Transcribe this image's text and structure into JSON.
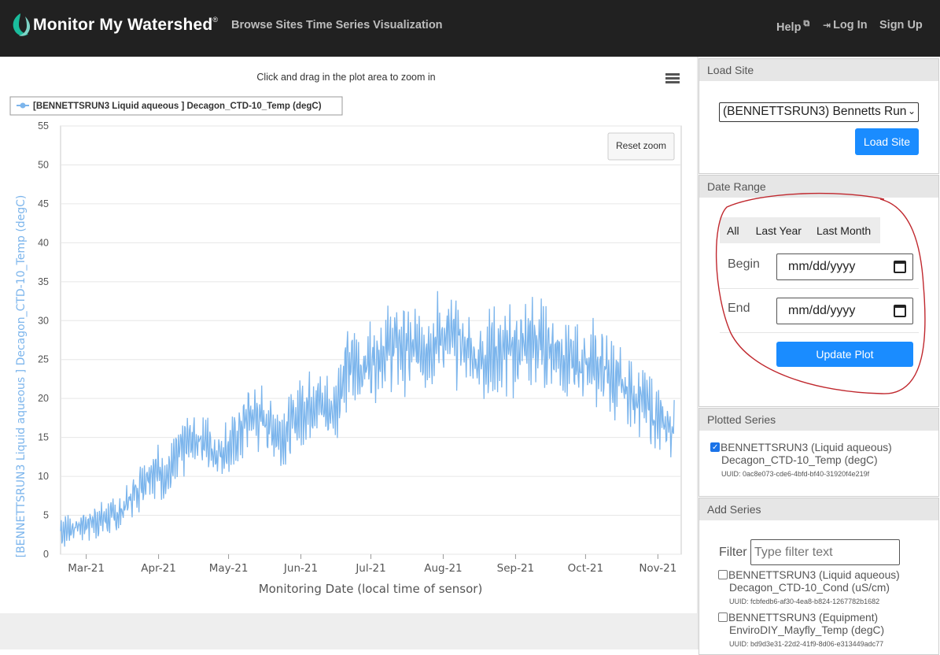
{
  "header": {
    "brand": "Monitor My Watershed",
    "brand_mark": "®",
    "nav_left": [
      "Browse Sites",
      "Time Series Visualization"
    ],
    "help": "Help",
    "login": "Log In",
    "signup": "Sign Up"
  },
  "chart": {
    "instruction": "Click and drag in the plot area to zoom in",
    "legend": "[BENNETTSRUN3 Liquid aqueous ] Decagon_CTD-10_Temp (degC)",
    "reset_zoom": "Reset zoom",
    "y_ticks": [
      "55",
      "50",
      "45",
      "40",
      "35",
      "30",
      "25",
      "20",
      "15",
      "10",
      "5",
      "0"
    ],
    "x_ticks": [
      "Mar-21",
      "Apr-21",
      "May-21",
      "Jun-21",
      "Jul-21",
      "Aug-21",
      "Sep-21",
      "Oct-21",
      "Nov-21"
    ],
    "ylabel": "[BENNETTSRUN3 Liquid aqueous ] Decagon_CTD-10_Temp (degC)",
    "xlabel": "Monitoring Date (local time of sensor)",
    "line_color": "#7cb5ec"
  },
  "chart_data": {
    "type": "line",
    "x": [
      "2021-02-18",
      "2021-02-25",
      "2021-03-01",
      "2021-03-08",
      "2021-03-15",
      "2021-03-22",
      "2021-03-29",
      "2021-04-05",
      "2021-04-12",
      "2021-04-19",
      "2021-04-26",
      "2021-05-03",
      "2021-05-10",
      "2021-05-17",
      "2021-05-24",
      "2021-05-31",
      "2021-06-07",
      "2021-06-14",
      "2021-06-21",
      "2021-06-28",
      "2021-07-05",
      "2021-07-12",
      "2021-07-19",
      "2021-07-26",
      "2021-08-02",
      "2021-08-09",
      "2021-08-16",
      "2021-08-23",
      "2021-08-30",
      "2021-09-06",
      "2021-09-13",
      "2021-09-20",
      "2021-09-27",
      "2021-10-04",
      "2021-10-11",
      "2021-10-18",
      "2021-10-25",
      "2021-11-01",
      "2021-11-08"
    ],
    "series": [
      {
        "values": [
          3,
          3.5,
          4,
          4.5,
          5,
          8,
          11,
          10,
          14,
          15,
          13,
          14,
          18,
          17,
          15,
          18,
          20,
          18,
          24,
          24,
          26,
          27,
          26,
          27,
          28,
          27,
          25,
          26,
          26,
          27,
          27,
          26,
          24,
          25,
          23,
          21,
          20,
          17,
          16
        ]
      }
    ],
    "xlabel": "Monitoring Date (local time of sensor)",
    "ylabel": "[BENNETTSRUN3 Liquid aqueous ] Decagon_CTD-10_Temp (degC)",
    "ylim": [
      0,
      55
    ],
    "x_tick_labels": [
      "Mar-21",
      "Apr-21",
      "May-21",
      "Jun-21",
      "Jul-21",
      "Aug-21",
      "Sep-21",
      "Oct-21",
      "Nov-21"
    ],
    "legend": [
      "[BENNETTSRUN3 Liquid aqueous ] Decagon_CTD-10_Temp (degC)"
    ],
    "grid": true
  },
  "sidebar": {
    "load_site": {
      "title": "Load Site",
      "select_value": "(BENNETTSRUN3) Bennetts Run",
      "button": "Load Site"
    },
    "date_range": {
      "title": "Date Range",
      "tabs": [
        "All",
        "Last Year",
        "Last Month"
      ],
      "begin_label": "Begin",
      "end_label": "End",
      "begin_placeholder": "mm/dd/yyyy",
      "end_placeholder": "mm/dd/yyyy",
      "button": "Update Plot"
    },
    "plotted_series": {
      "title": "Plotted Series",
      "items": [
        {
          "line1": "BENNETTSRUN3 (Liquid aqueous)",
          "line2": "Decagon_CTD-10_Temp (degC)",
          "uuid": "UUID: 0ac8e073-cde6-4bfd-bf40-31920f4e219f",
          "checked": true
        }
      ]
    },
    "add_series": {
      "title": "Add Series",
      "filter_label": "Filter",
      "filter_placeholder": "Type filter text",
      "items": [
        {
          "line1": "BENNETTSRUN3 (Liquid aqueous)",
          "line2": "Decagon_CTD-10_Cond (uS/cm)",
          "uuid": "UUID: fcbfedb6-af30-4ea8-b824-1267782b1682"
        },
        {
          "line1": "BENNETTSRUN3 (Equipment)",
          "line2": "EnviroDIY_Mayfly_Temp (degC)",
          "uuid": "UUID: bd9d3e31-22d2-41f9-8d06-e313449adc77"
        }
      ]
    }
  },
  "colors": {
    "primary_button": "#1a8cff",
    "header_bg": "#212121",
    "annotation_circle": "#c0282e"
  }
}
